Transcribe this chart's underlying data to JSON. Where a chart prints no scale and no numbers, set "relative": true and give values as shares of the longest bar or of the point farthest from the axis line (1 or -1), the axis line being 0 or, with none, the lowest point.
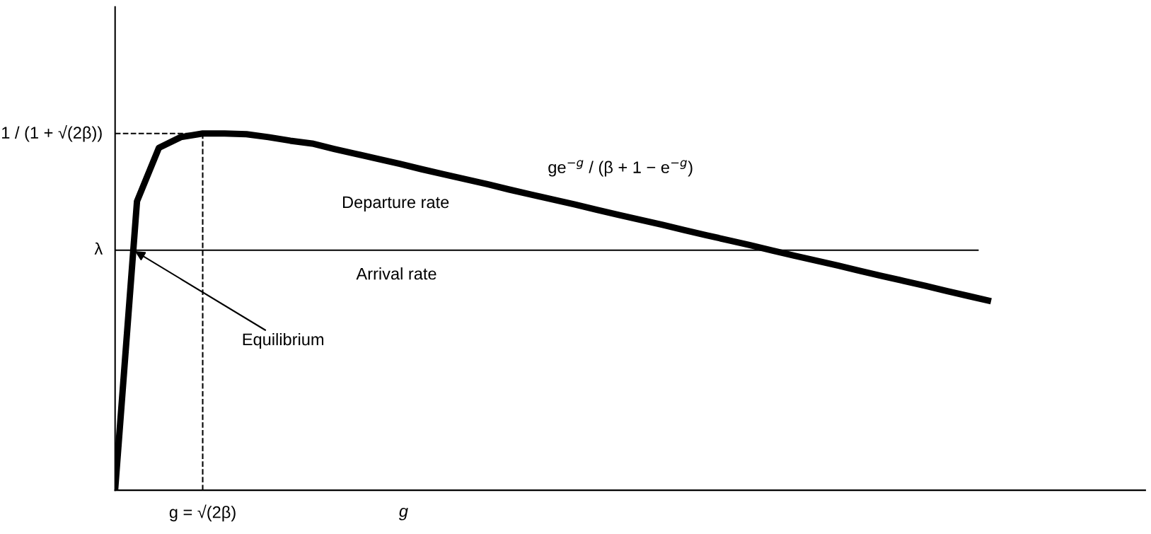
{
  "chart_data": {
    "type": "line",
    "relative": true,
    "xlabel": "g",
    "categories": [
      null,
      null,
      null,
      null,
      null,
      null,
      null,
      null,
      null,
      null,
      null,
      null,
      null,
      null,
      null,
      null,
      null,
      null,
      null,
      null,
      null,
      null,
      null,
      null,
      null,
      null,
      null,
      null,
      null,
      null,
      null,
      null,
      null,
      null,
      null,
      null,
      null,
      null,
      null,
      null,
      null
    ],
    "series": [
      {
        "color": "#000000",
        "values": [
          0,
          0.81,
          0.96,
          0.99,
          1.0,
          1.0,
          0.998,
          0.99,
          0.98,
          0.972,
          0.957,
          0.943,
          0.929,
          0.915,
          0.9,
          0.886,
          0.872,
          0.858,
          0.843,
          0.829,
          0.815,
          0.801,
          0.786,
          0.772,
          0.758,
          0.744,
          0.729,
          0.715,
          0.701,
          0.687,
          0.672,
          0.658,
          0.644,
          0.63,
          0.615,
          0.601,
          0.587,
          0.573,
          0.558,
          0.544,
          0.53
        ]
      }
    ],
    "ref_lines": [
      {
        "axis": "y",
        "value": 0.673,
        "label": "λ",
        "line_style": "solid",
        "color": "#000000"
      },
      {
        "axis": "y",
        "value": 1.0,
        "label": "1 / (1 + √(2β))",
        "line_style": "dashed",
        "color": "#000000"
      }
    ],
    "annotations": [
      "Departure rate",
      "Arrival rate",
      "Equilibrium",
      "ge$^{−g}$ / (β + 1 − e$^{−g}$)",
      "g = √(2β)"
    ],
    "grid": false,
    "legend": false,
    "marker": "none",
    "line_style": "solid"
  }
}
